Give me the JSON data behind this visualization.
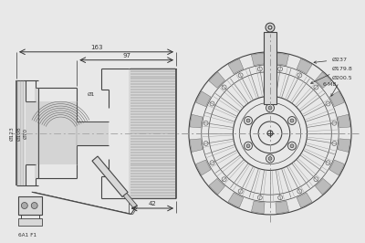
{
  "bg_color": "#e8e8e8",
  "line_color": "#444444",
  "dim_color": "#333333",
  "thin_line": 0.5,
  "medium_line": 0.8,
  "thick_line": 1.2,
  "gray_fill": "#cccccc",
  "light_fill": "#d8d8d8",
  "annotations": {
    "dim_163": "163",
    "dim_97": "97",
    "dim_42": "42",
    "dim_d123": "Ø123",
    "dim_d108": "Ø108",
    "dim_d70": "Ø70",
    "dim_d1": "Ø1",
    "dim_d237": "Ø237",
    "dim_d179": "Ø179.8",
    "dim_d200": "Ø200.5",
    "dim_6m8": "6-M8",
    "connector": "6A1 F1"
  },
  "fig_width": 4.0,
  "fig_height": 2.66,
  "dpi": 100
}
